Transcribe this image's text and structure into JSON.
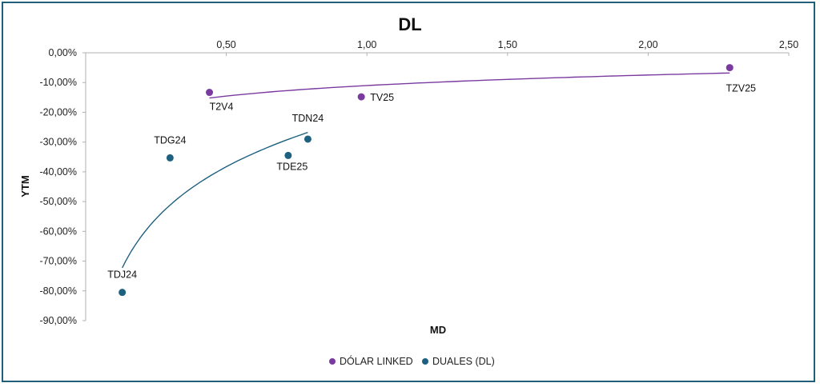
{
  "chart_data": {
    "type": "scatter",
    "title": "DL",
    "xlabel": "MD",
    "ylabel": "YTM",
    "xlim": [
      0,
      2.5
    ],
    "ylim": [
      -0.9,
      0
    ],
    "x_ticks": [
      "0,50",
      "1,00",
      "1,50",
      "2,00",
      "2,50"
    ],
    "y_ticks": [
      "0,00%",
      "-10,00%",
      "-20,00%",
      "-30,00%",
      "-40,00%",
      "-50,00%",
      "-60,00%",
      "-70,00%",
      "-80,00%",
      "-90,00%"
    ],
    "x_axis_position": "top",
    "grid": false,
    "legend_position": "bottom",
    "trendlines": "logarithmic",
    "series": [
      {
        "name": "DÓLAR LINKED",
        "color": "#7a3aa0",
        "points": [
          {
            "label": "T2V4",
            "x": 0.44,
            "y": -0.133
          },
          {
            "label": "TV25",
            "x": 0.98,
            "y": -0.148
          },
          {
            "label": "TZV25",
            "x": 2.29,
            "y": -0.05
          }
        ]
      },
      {
        "name": "DUALES (DL)",
        "color": "#1e6080",
        "points": [
          {
            "label": "TDJ24",
            "x": 0.13,
            "y": -0.805
          },
          {
            "label": "TDG24",
            "x": 0.3,
            "y": -0.353
          },
          {
            "label": "TDE25",
            "x": 0.72,
            "y": -0.345
          },
          {
            "label": "TDN24",
            "x": 0.79,
            "y": -0.29
          }
        ]
      }
    ]
  }
}
